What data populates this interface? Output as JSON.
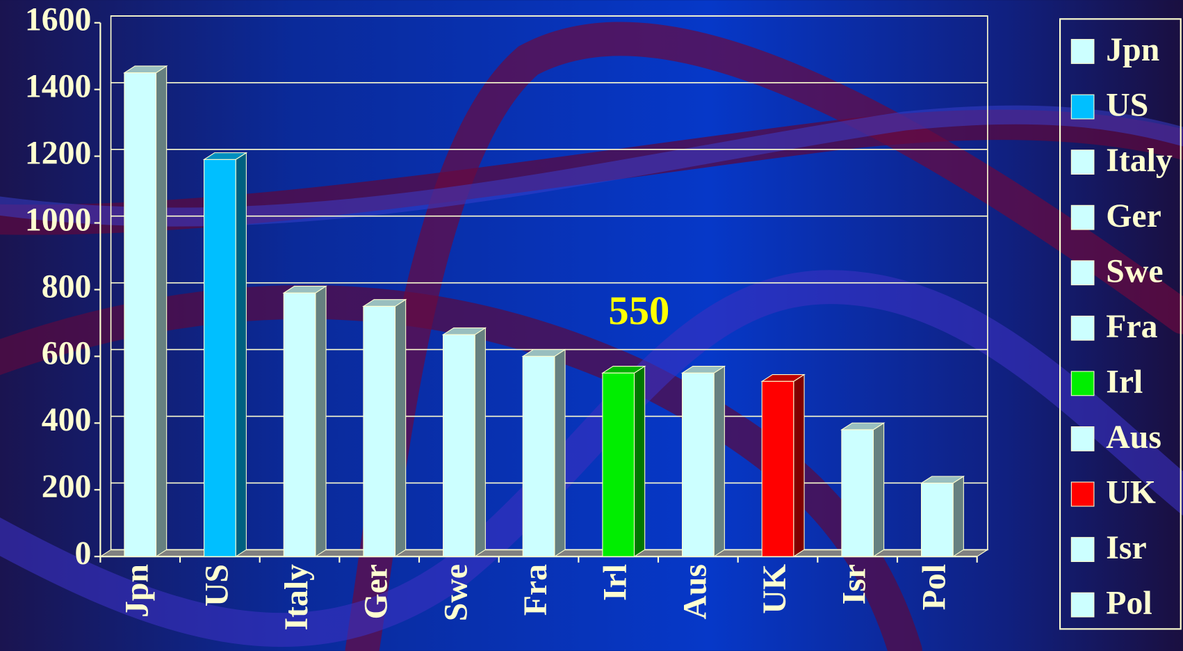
{
  "chart_data": {
    "type": "bar3d",
    "annotation": "550",
    "categories": [
      "Jpn",
      "US",
      "Italy",
      "Ger",
      "Swe",
      "Fra",
      "Irl",
      "Aus",
      "UK",
      "Isr",
      "Pol"
    ],
    "values": [
      1450,
      1190,
      790,
      750,
      665,
      600,
      550,
      550,
      525,
      380,
      220
    ],
    "colors": [
      "#ccffff",
      "#00bfff",
      "#ccffff",
      "#ccffff",
      "#ccffff",
      "#ccffff",
      "#00ee00",
      "#ccffff",
      "#ff0000",
      "#ccffff",
      "#ccffff"
    ],
    "ylim": [
      0,
      1600
    ],
    "yticks": [
      0,
      200,
      400,
      600,
      800,
      1000,
      1200,
      1400,
      1600
    ],
    "grid": true,
    "legend": "right"
  }
}
